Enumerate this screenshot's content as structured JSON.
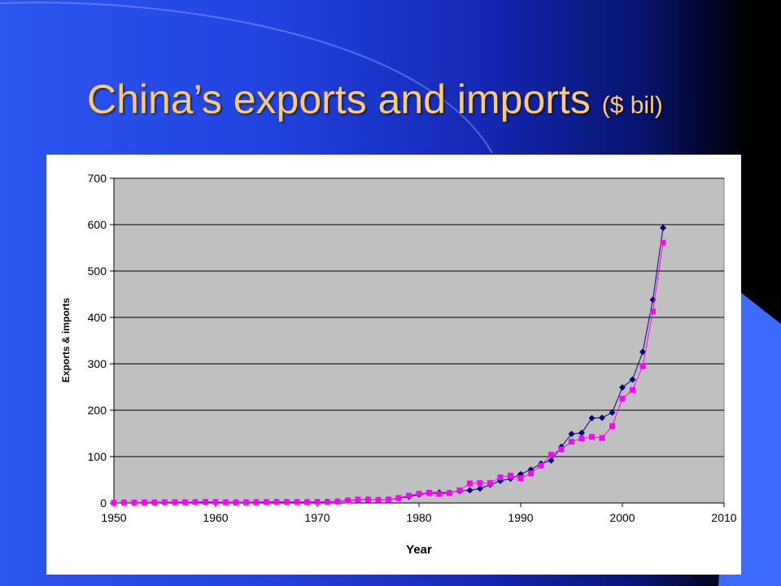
{
  "slide": {
    "title": "China’s exports and imports",
    "title_suffix": "($ bil)"
  },
  "colors": {
    "title": "#ffcc66",
    "plot_area": "#c0c0c0",
    "exports": "#000080",
    "imports": "#ff00ff"
  },
  "chart_data": {
    "type": "line",
    "title": "",
    "xlabel": "Year",
    "ylabel": "Exports & imports",
    "xlim": [
      1950,
      2010
    ],
    "ylim": [
      0,
      700
    ],
    "xticks": [
      1950,
      1960,
      1970,
      1980,
      1990,
      2000,
      2010
    ],
    "yticks": [
      0,
      100,
      200,
      300,
      400,
      500,
      600,
      700
    ],
    "grid": "horizontal",
    "legend": "none",
    "series": [
      {
        "marker": "diamond",
        "color": "#000080",
        "x": [
          1950,
          1951,
          1952,
          1953,
          1954,
          1955,
          1956,
          1957,
          1958,
          1959,
          1960,
          1961,
          1962,
          1963,
          1964,
          1965,
          1966,
          1967,
          1968,
          1969,
          1970,
          1971,
          1972,
          1973,
          1974,
          1975,
          1976,
          1977,
          1978,
          1979,
          1980,
          1981,
          1982,
          1983,
          1984,
          1985,
          1986,
          1987,
          1988,
          1989,
          1990,
          1991,
          1992,
          1993,
          1994,
          1995,
          1996,
          1997,
          1998,
          1999,
          2000,
          2001,
          2002,
          2003,
          2004
        ],
        "y": [
          0.6,
          0.8,
          0.8,
          1.0,
          1.1,
          1.4,
          1.6,
          1.6,
          2.0,
          2.3,
          1.9,
          1.5,
          1.5,
          1.6,
          1.9,
          2.2,
          2.4,
          2.1,
          2.1,
          2.2,
          2.3,
          2.6,
          3.4,
          5.8,
          6.9,
          7.3,
          6.9,
          7.6,
          9.8,
          13.7,
          18.1,
          22.0,
          22.3,
          22.2,
          26.1,
          27.4,
          30.9,
          39.4,
          47.5,
          52.5,
          62.1,
          71.8,
          84.9,
          91.7,
          121.0,
          148.8,
          151.0,
          182.8,
          183.7,
          194.9,
          249.2,
          266.1,
          325.6,
          438.2,
          593.3
        ]
      },
      {
        "marker": "square",
        "color": "#ff00ff",
        "x": [
          1950,
          1951,
          1952,
          1953,
          1954,
          1955,
          1956,
          1957,
          1958,
          1959,
          1960,
          1961,
          1962,
          1963,
          1964,
          1965,
          1966,
          1967,
          1968,
          1969,
          1970,
          1971,
          1972,
          1973,
          1974,
          1975,
          1976,
          1977,
          1978,
          1979,
          1980,
          1981,
          1982,
          1983,
          1984,
          1985,
          1986,
          1987,
          1988,
          1989,
          1990,
          1991,
          1992,
          1993,
          1994,
          1995,
          1996,
          1997,
          1998,
          1999,
          2000,
          2001,
          2002,
          2003,
          2004
        ],
        "y": [
          0.6,
          1.2,
          1.1,
          1.3,
          1.3,
          1.7,
          1.6,
          1.5,
          1.9,
          2.1,
          2.0,
          1.5,
          1.2,
          1.3,
          1.5,
          2.0,
          2.2,
          2.0,
          1.9,
          1.8,
          2.3,
          2.2,
          2.9,
          5.2,
          7.6,
          7.5,
          6.6,
          7.2,
          10.9,
          15.7,
          20.0,
          22.0,
          19.3,
          21.4,
          27.4,
          42.3,
          42.9,
          43.2,
          55.3,
          59.1,
          53.4,
          63.8,
          80.6,
          104.0,
          115.7,
          132.1,
          138.8,
          142.4,
          140.2,
          165.7,
          225.1,
          243.6,
          295.2,
          412.8,
          561.2
        ]
      }
    ]
  }
}
